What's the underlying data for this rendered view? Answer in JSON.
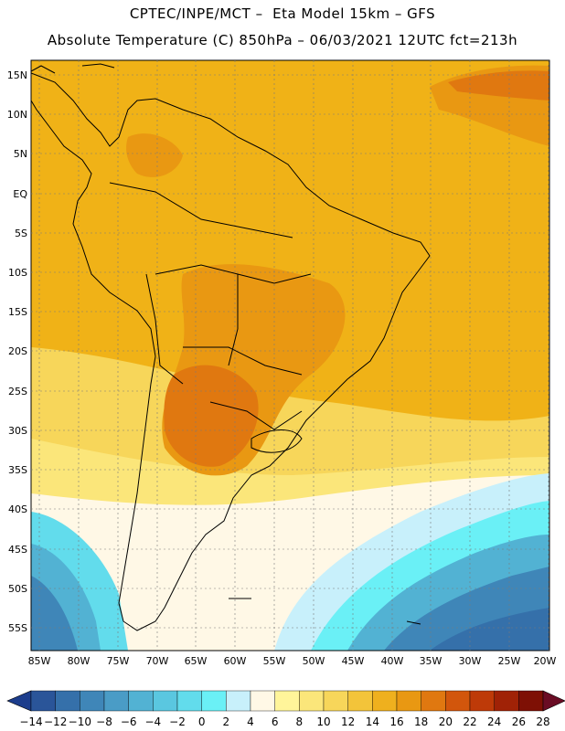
{
  "header": {
    "line1": "CPTEC/INPE/MCT –  Eta Model 15km – GFS",
    "line2": "Absolute Temperature (C) 850hPa – 06/03/2021 12UTC fct=213h"
  },
  "axes": {
    "lat_labels": [
      "15N",
      "10N",
      "5N",
      "EQ",
      "5S",
      "10S",
      "15S",
      "20S",
      "25S",
      "30S",
      "35S",
      "40S",
      "45S",
      "50S",
      "55S"
    ],
    "lon_labels": [
      "85W",
      "80W",
      "75W",
      "70W",
      "65W",
      "60W",
      "55W",
      "50W",
      "45W",
      "40W",
      "35W",
      "30W",
      "25W",
      "20W"
    ]
  },
  "colorbar": {
    "labels": [
      "-14",
      "-12",
      "-10",
      "-8",
      "-6",
      "-4",
      "-2",
      "0",
      "2",
      "4",
      "6",
      "8",
      "10",
      "12",
      "14",
      "16",
      "18",
      "20",
      "22",
      "24",
      "26",
      "28"
    ],
    "colors": [
      "#1c3d8c",
      "#2a5599",
      "#3570aa",
      "#3f86b8",
      "#4a9cc6",
      "#52b2d3",
      "#5ac7e0",
      "#62dcec",
      "#6af0f6",
      "#c8f0fb",
      "#fff8e6",
      "#fff59a",
      "#fbe67a",
      "#f7d65a",
      "#f3c43a",
      "#efb01e",
      "#e99812",
      "#e07810",
      "#d2560c",
      "#be3a08",
      "#a02206",
      "#7e1005",
      "#6a0c24"
    ]
  },
  "colors": {
    "background": "#ffffff",
    "map_base": "#f0b217",
    "warm_core": "#e07810",
    "cold_ocean": "#3f86b8",
    "coastline": "#000000"
  }
}
